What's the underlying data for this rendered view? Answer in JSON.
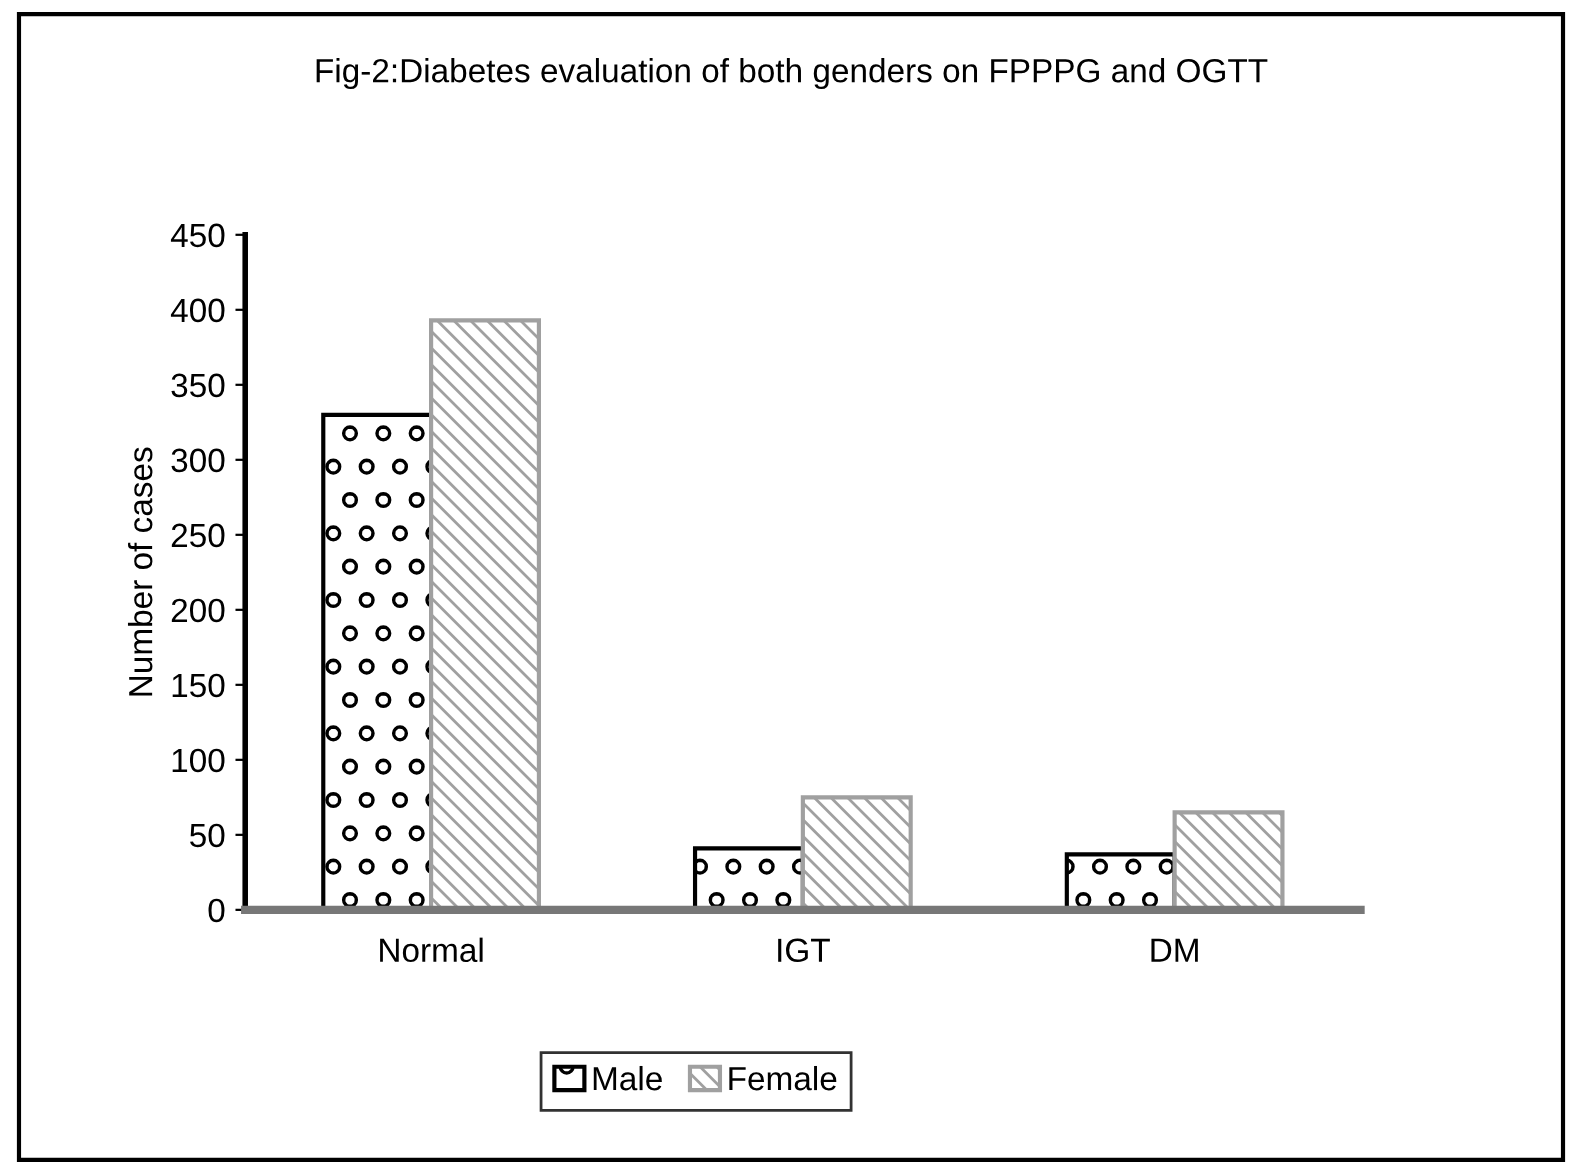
{
  "chart_data": {
    "type": "bar",
    "title": "Fig-2:Diabetes evaluation of both genders on FPPPG and OGTT",
    "ylabel": "Number of cases",
    "categories": [
      "Normal",
      "IGT",
      "DM"
    ],
    "series": [
      {
        "name": "Male",
        "color": "#000000",
        "values": [
          330,
          41,
          37
        ]
      },
      {
        "name": "Female",
        "color": "#a0a0a0",
        "values": [
          393,
          75,
          65
        ]
      }
    ],
    "ylim": [
      0,
      450
    ],
    "yticks": [
      0,
      50,
      100,
      150,
      200,
      250,
      300,
      350,
      400,
      450
    ],
    "grid": false,
    "legend": "bottom"
  }
}
